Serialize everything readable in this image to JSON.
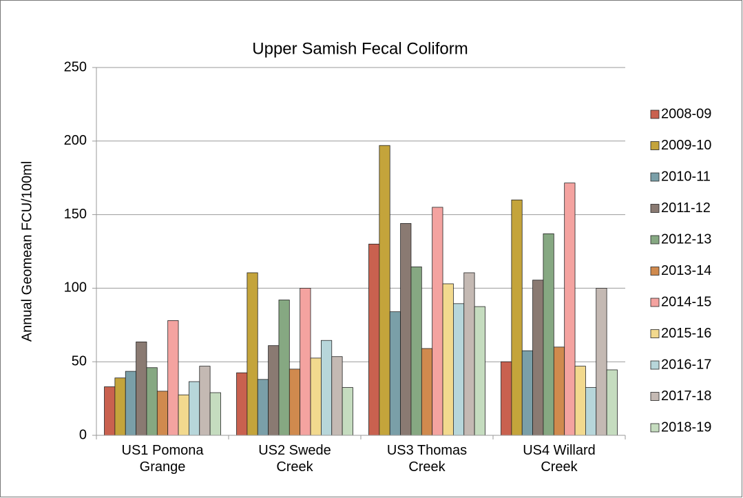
{
  "chart_data": {
    "type": "bar",
    "title": "Upper Samish Fecal Coliform",
    "y_label": "Annual Geomean FCU/100ml",
    "categories": [
      "US1 Pomona Grange",
      "US2 Swede Creek",
      "US3 Thomas Creek",
      "US4 Willard Creek"
    ],
    "series": [
      {
        "name": "2008-09",
        "color": "#c9614f",
        "values": [
          33,
          42.5,
          130,
          50
        ]
      },
      {
        "name": "2009-10",
        "color": "#c4a43b",
        "values": [
          39,
          110.5,
          197,
          160
        ]
      },
      {
        "name": "2010-11",
        "color": "#7a9fa8",
        "values": [
          43.5,
          38,
          84,
          57.5
        ]
      },
      {
        "name": "2011-12",
        "color": "#8a7a72",
        "values": [
          63.5,
          61,
          144,
          105.5
        ]
      },
      {
        "name": "2012-13",
        "color": "#86a882",
        "values": [
          46,
          92,
          114.5,
          137
        ]
      },
      {
        "name": "2013-14",
        "color": "#d08a4e",
        "values": [
          30,
          45,
          59,
          60
        ]
      },
      {
        "name": "2014-15",
        "color": "#f4a3a0",
        "values": [
          78,
          100,
          155,
          171.5
        ]
      },
      {
        "name": "2015-16",
        "color": "#f2d98e",
        "values": [
          27.5,
          52.5,
          103,
          47
        ]
      },
      {
        "name": "2016-17",
        "color": "#b7d6da",
        "values": [
          36.5,
          64.5,
          89.5,
          32.5
        ]
      },
      {
        "name": "2017-18",
        "color": "#c4b9b3",
        "values": [
          47,
          53.5,
          110.5,
          100
        ]
      },
      {
        "name": "2018-19",
        "color": "#c5dcbf",
        "values": [
          29,
          32.5,
          87.5,
          44.5
        ]
      }
    ],
    "ylim": [
      0,
      250
    ],
    "yticks": [
      0,
      50,
      100,
      150,
      200,
      250
    ],
    "grid": true,
    "legend": "right"
  }
}
